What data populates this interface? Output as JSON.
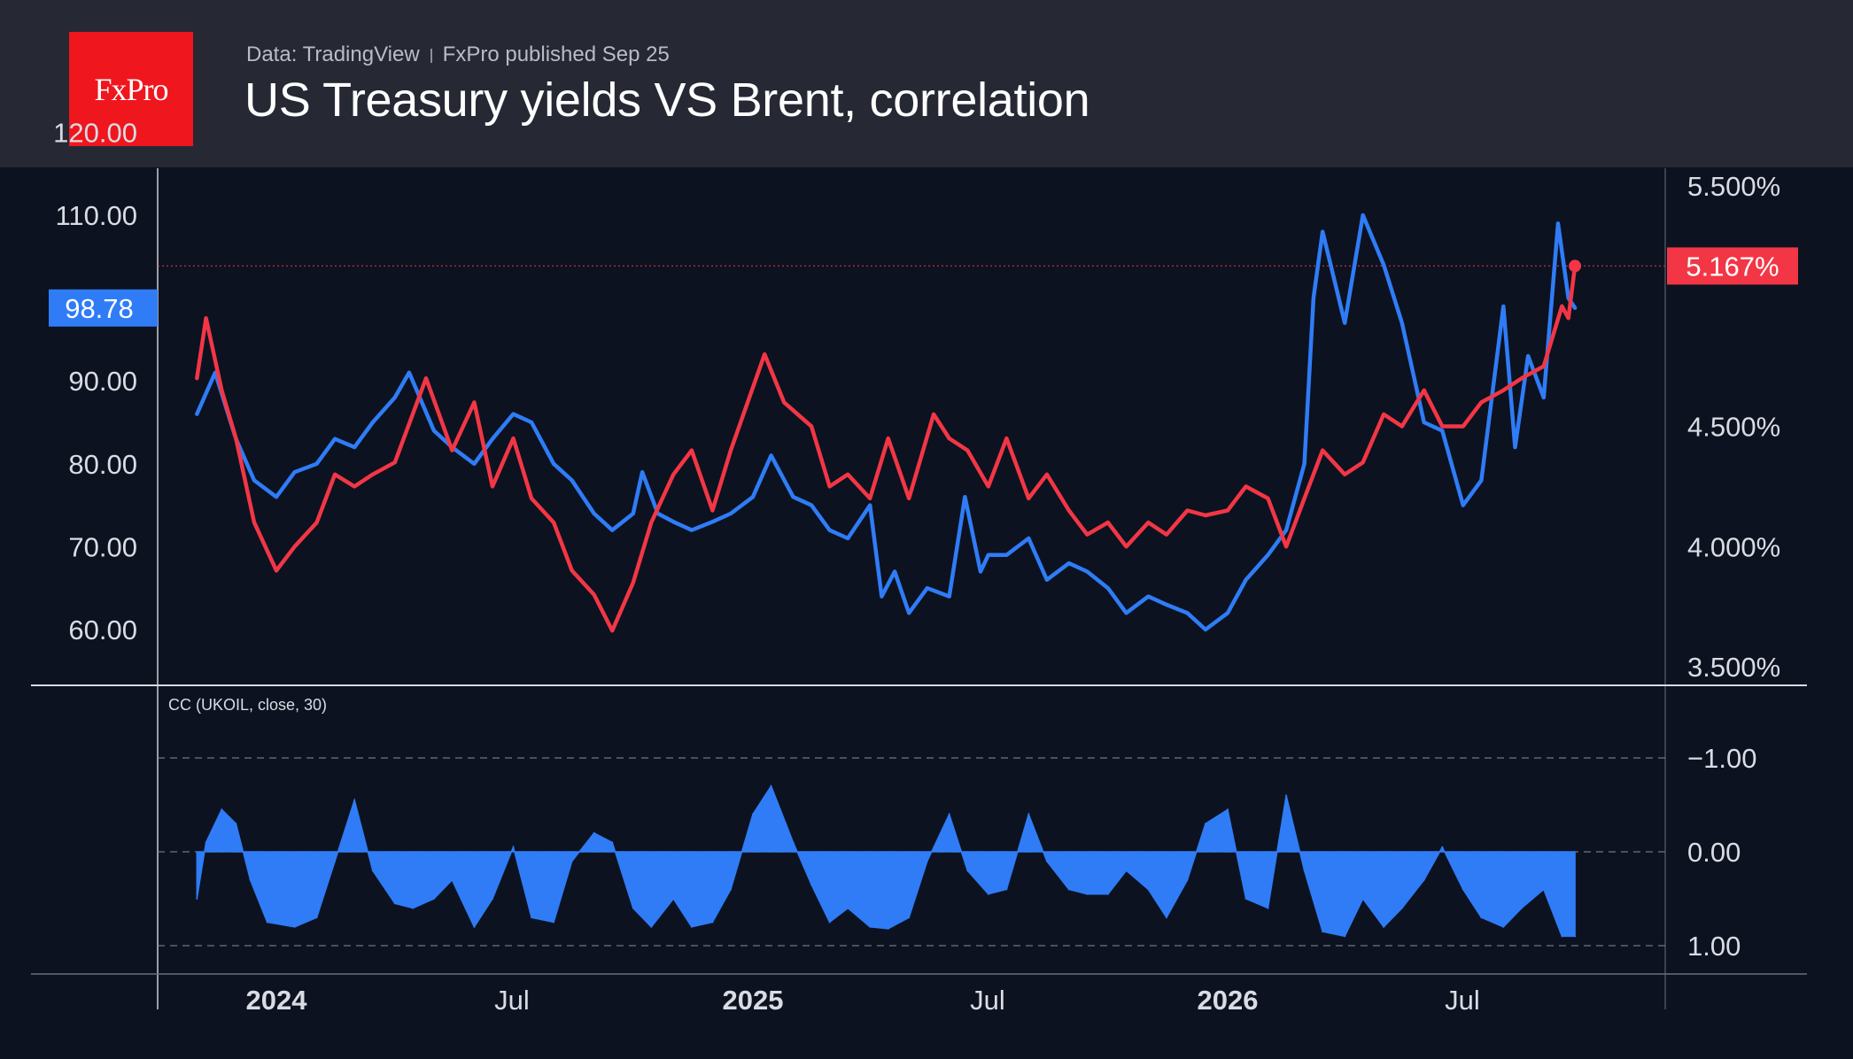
{
  "header": {
    "logo_text": "FxPro",
    "source": "Data: TradingView",
    "published": "FxPro published Sep 25",
    "title": "US Treasury yields VS Brent, correlation"
  },
  "colors": {
    "header_bg": "#262934",
    "chart_bg": "#0c1220",
    "brent": "#2f7cf6",
    "yields": "#f23645",
    "logo": "#f0161d"
  },
  "chart_data": [
    {
      "type": "line",
      "x_ticks": [
        "2024",
        "Jul",
        "2025",
        "Jul",
        "2026",
        "Jul"
      ],
      "left_axis_ticks": [
        "120.00",
        "110.00",
        "90.00",
        "80.00",
        "70.00",
        "60.00"
      ],
      "right_axis_ticks": [
        "5.500%",
        "4.500%",
        "4.000%",
        "3.500%"
      ],
      "left_ylim": [
        60,
        120
      ],
      "right_ylim": [
        3.5,
        5.5
      ],
      "series": [
        {
          "color": "#2f7cf6",
          "axis": "left",
          "last_value_label": "98.78",
          "points": [
            [
              "2023-11-01",
              86
            ],
            [
              "2023-11-15",
              91
            ],
            [
              "2023-12-01",
              83
            ],
            [
              "2023-12-15",
              78
            ],
            [
              "2024-01-01",
              76
            ],
            [
              "2024-01-15",
              79
            ],
            [
              "2024-02-01",
              80
            ],
            [
              "2024-02-15",
              83
            ],
            [
              "2024-03-01",
              82
            ],
            [
              "2024-03-15",
              85
            ],
            [
              "2024-04-01",
              88
            ],
            [
              "2024-04-12",
              91
            ],
            [
              "2024-05-01",
              84
            ],
            [
              "2024-05-15",
              82
            ],
            [
              "2024-06-01",
              80
            ],
            [
              "2024-06-15",
              83
            ],
            [
              "2024-07-01",
              86
            ],
            [
              "2024-07-15",
              85
            ],
            [
              "2024-08-01",
              80
            ],
            [
              "2024-08-15",
              78
            ],
            [
              "2024-09-01",
              74
            ],
            [
              "2024-09-15",
              72
            ],
            [
              "2024-10-01",
              74
            ],
            [
              "2024-10-08",
              79
            ],
            [
              "2024-10-20",
              74
            ],
            [
              "2024-11-01",
              73
            ],
            [
              "2024-11-15",
              72
            ],
            [
              "2024-12-01",
              73
            ],
            [
              "2024-12-15",
              74
            ],
            [
              "2025-01-01",
              76
            ],
            [
              "2025-01-15",
              81
            ],
            [
              "2025-02-01",
              76
            ],
            [
              "2025-02-15",
              75
            ],
            [
              "2025-03-01",
              72
            ],
            [
              "2025-03-15",
              71
            ],
            [
              "2025-04-01",
              75
            ],
            [
              "2025-04-10",
              64
            ],
            [
              "2025-04-20",
              67
            ],
            [
              "2025-05-01",
              62
            ],
            [
              "2025-05-15",
              65
            ],
            [
              "2025-06-01",
              64
            ],
            [
              "2025-06-13",
              76
            ],
            [
              "2025-06-25",
              67
            ],
            [
              "2025-07-01",
              69
            ],
            [
              "2025-07-15",
              69
            ],
            [
              "2025-08-01",
              71
            ],
            [
              "2025-08-15",
              66
            ],
            [
              "2025-09-01",
              68
            ],
            [
              "2025-09-15",
              67
            ],
            [
              "2025-10-01",
              65
            ],
            [
              "2025-10-15",
              62
            ],
            [
              "2025-11-01",
              64
            ],
            [
              "2025-11-15",
              63
            ],
            [
              "2025-12-01",
              62
            ],
            [
              "2025-12-15",
              60
            ],
            [
              "2026-01-01",
              62
            ],
            [
              "2026-01-15",
              66
            ],
            [
              "2026-02-01",
              69
            ],
            [
              "2026-02-15",
              72
            ],
            [
              "2026-03-01",
              80
            ],
            [
              "2026-03-08",
              100
            ],
            [
              "2026-03-15",
              108
            ],
            [
              "2026-04-01",
              97
            ],
            [
              "2026-04-15",
              110
            ],
            [
              "2026-05-01",
              104
            ],
            [
              "2026-05-15",
              97
            ],
            [
              "2026-06-01",
              85
            ],
            [
              "2026-06-15",
              84
            ],
            [
              "2026-07-01",
              75
            ],
            [
              "2026-07-15",
              78
            ],
            [
              "2026-08-01",
              99
            ],
            [
              "2026-08-10",
              82
            ],
            [
              "2026-08-20",
              93
            ],
            [
              "2026-09-01",
              88
            ],
            [
              "2026-09-12",
              109
            ],
            [
              "2026-09-20",
              100
            ],
            [
              "2026-09-25",
              98.8
            ]
          ]
        },
        {
          "color": "#f23645",
          "axis": "right",
          "last_value_label": "5.167%",
          "points": [
            [
              "2023-11-01",
              4.7
            ],
            [
              "2023-11-08",
              4.95
            ],
            [
              "2023-11-20",
              4.65
            ],
            [
              "2023-12-01",
              4.45
            ],
            [
              "2023-12-15",
              4.1
            ],
            [
              "2024-01-01",
              3.9
            ],
            [
              "2024-01-15",
              4.0
            ],
            [
              "2024-02-01",
              4.1
            ],
            [
              "2024-02-15",
              4.3
            ],
            [
              "2024-03-01",
              4.25
            ],
            [
              "2024-03-15",
              4.3
            ],
            [
              "2024-04-01",
              4.35
            ],
            [
              "2024-04-25",
              4.7
            ],
            [
              "2024-05-15",
              4.4
            ],
            [
              "2024-06-01",
              4.6
            ],
            [
              "2024-06-15",
              4.25
            ],
            [
              "2024-07-01",
              4.45
            ],
            [
              "2024-07-15",
              4.2
            ],
            [
              "2024-08-01",
              4.1
            ],
            [
              "2024-08-15",
              3.9
            ],
            [
              "2024-09-01",
              3.8
            ],
            [
              "2024-09-15",
              3.65
            ],
            [
              "2024-10-01",
              3.85
            ],
            [
              "2024-10-15",
              4.1
            ],
            [
              "2024-11-01",
              4.3
            ],
            [
              "2024-11-15",
              4.4
            ],
            [
              "2024-12-01",
              4.15
            ],
            [
              "2024-12-15",
              4.4
            ],
            [
              "2025-01-10",
              4.8
            ],
            [
              "2025-01-25",
              4.6
            ],
            [
              "2025-02-15",
              4.5
            ],
            [
              "2025-03-01",
              4.25
            ],
            [
              "2025-03-15",
              4.3
            ],
            [
              "2025-04-01",
              4.2
            ],
            [
              "2025-04-15",
              4.45
            ],
            [
              "2025-05-01",
              4.2
            ],
            [
              "2025-05-20",
              4.55
            ],
            [
              "2025-06-01",
              4.45
            ],
            [
              "2025-06-15",
              4.4
            ],
            [
              "2025-07-01",
              4.25
            ],
            [
              "2025-07-15",
              4.45
            ],
            [
              "2025-08-01",
              4.2
            ],
            [
              "2025-08-15",
              4.3
            ],
            [
              "2025-09-01",
              4.15
            ],
            [
              "2025-09-15",
              4.05
            ],
            [
              "2025-10-01",
              4.1
            ],
            [
              "2025-10-15",
              4.0
            ],
            [
              "2025-11-01",
              4.1
            ],
            [
              "2025-11-15",
              4.05
            ],
            [
              "2025-12-01",
              4.15
            ],
            [
              "2025-12-15",
              4.13
            ],
            [
              "2026-01-01",
              4.15
            ],
            [
              "2026-01-15",
              4.25
            ],
            [
              "2026-02-01",
              4.2
            ],
            [
              "2026-02-15",
              4.0
            ],
            [
              "2026-03-01",
              4.2
            ],
            [
              "2026-03-15",
              4.4
            ],
            [
              "2026-04-01",
              4.3
            ],
            [
              "2026-04-15",
              4.35
            ],
            [
              "2026-05-01",
              4.55
            ],
            [
              "2026-05-15",
              4.5
            ],
            [
              "2026-06-01",
              4.65
            ],
            [
              "2026-06-15",
              4.5
            ],
            [
              "2026-07-01",
              4.5
            ],
            [
              "2026-07-15",
              4.6
            ],
            [
              "2026-08-01",
              4.65
            ],
            [
              "2026-08-15",
              4.7
            ],
            [
              "2026-09-01",
              4.75
            ],
            [
              "2026-09-15",
              5.0
            ],
            [
              "2026-09-20",
              4.95
            ],
            [
              "2026-09-25",
              5.167
            ]
          ]
        }
      ]
    },
    {
      "type": "area",
      "label": "CC (UKOIL, close, 30)",
      "right_axis_ticks": [
        "1.00",
        "0.00",
        "−1.00"
      ],
      "ylim": [
        -1,
        1
      ],
      "color": "#2f7cf6",
      "points": [
        [
          "2023-11-01",
          0.5
        ],
        [
          "2023-11-08",
          -0.1
        ],
        [
          "2023-11-20",
          -0.45
        ],
        [
          "2023-12-01",
          -0.3
        ],
        [
          "2023-12-12",
          0.3
        ],
        [
          "2023-12-25",
          0.75
        ],
        [
          "2024-01-15",
          0.8
        ],
        [
          "2024-02-01",
          0.7
        ],
        [
          "2024-02-15",
          0.1
        ],
        [
          "2024-03-01",
          -0.55
        ],
        [
          "2024-03-15",
          0.2
        ],
        [
          "2024-04-01",
          0.55
        ],
        [
          "2024-04-15",
          0.6
        ],
        [
          "2024-05-01",
          0.5
        ],
        [
          "2024-05-15",
          0.3
        ],
        [
          "2024-06-01",
          0.8
        ],
        [
          "2024-06-15",
          0.5
        ],
        [
          "2024-07-01",
          -0.05
        ],
        [
          "2024-07-15",
          0.7
        ],
        [
          "2024-08-01",
          0.75
        ],
        [
          "2024-08-15",
          0.1
        ],
        [
          "2024-09-01",
          -0.2
        ],
        [
          "2024-09-15",
          -0.1
        ],
        [
          "2024-10-01",
          0.6
        ],
        [
          "2024-10-15",
          0.8
        ],
        [
          "2024-11-01",
          0.5
        ],
        [
          "2024-11-15",
          0.8
        ],
        [
          "2024-12-01",
          0.75
        ],
        [
          "2024-12-15",
          0.4
        ],
        [
          "2025-01-01",
          -0.4
        ],
        [
          "2025-01-15",
          -0.7
        ],
        [
          "2025-02-01",
          -0.1
        ],
        [
          "2025-02-15",
          0.35
        ],
        [
          "2025-03-01",
          0.75
        ],
        [
          "2025-03-15",
          0.6
        ],
        [
          "2025-04-01",
          0.8
        ],
        [
          "2025-04-15",
          0.82
        ],
        [
          "2025-05-01",
          0.7
        ],
        [
          "2025-05-15",
          0.1
        ],
        [
          "2025-06-01",
          -0.4
        ],
        [
          "2025-06-15",
          0.2
        ],
        [
          "2025-07-01",
          0.45
        ],
        [
          "2025-07-15",
          0.4
        ],
        [
          "2025-08-01",
          -0.4
        ],
        [
          "2025-08-15",
          0.1
        ],
        [
          "2025-09-01",
          0.4
        ],
        [
          "2025-09-15",
          0.45
        ],
        [
          "2025-10-01",
          0.45
        ],
        [
          "2025-10-15",
          0.2
        ],
        [
          "2025-11-01",
          0.4
        ],
        [
          "2025-11-15",
          0.7
        ],
        [
          "2025-12-01",
          0.3
        ],
        [
          "2025-12-15",
          -0.3
        ],
        [
          "2026-01-01",
          -0.45
        ],
        [
          "2026-01-15",
          0.5
        ],
        [
          "2026-02-01",
          0.6
        ],
        [
          "2026-02-15",
          -0.6
        ],
        [
          "2026-03-01",
          0.2
        ],
        [
          "2026-03-15",
          0.85
        ],
        [
          "2026-04-01",
          0.9
        ],
        [
          "2026-04-15",
          0.5
        ],
        [
          "2026-05-01",
          0.8
        ],
        [
          "2026-05-15",
          0.6
        ],
        [
          "2026-06-01",
          0.3
        ],
        [
          "2026-06-15",
          -0.05
        ],
        [
          "2026-07-01",
          0.4
        ],
        [
          "2026-07-15",
          0.7
        ],
        [
          "2026-08-01",
          0.8
        ],
        [
          "2026-08-15",
          0.6
        ],
        [
          "2026-09-01",
          0.4
        ],
        [
          "2026-09-15",
          0.9
        ],
        [
          "2026-09-25",
          0.9
        ]
      ]
    }
  ]
}
